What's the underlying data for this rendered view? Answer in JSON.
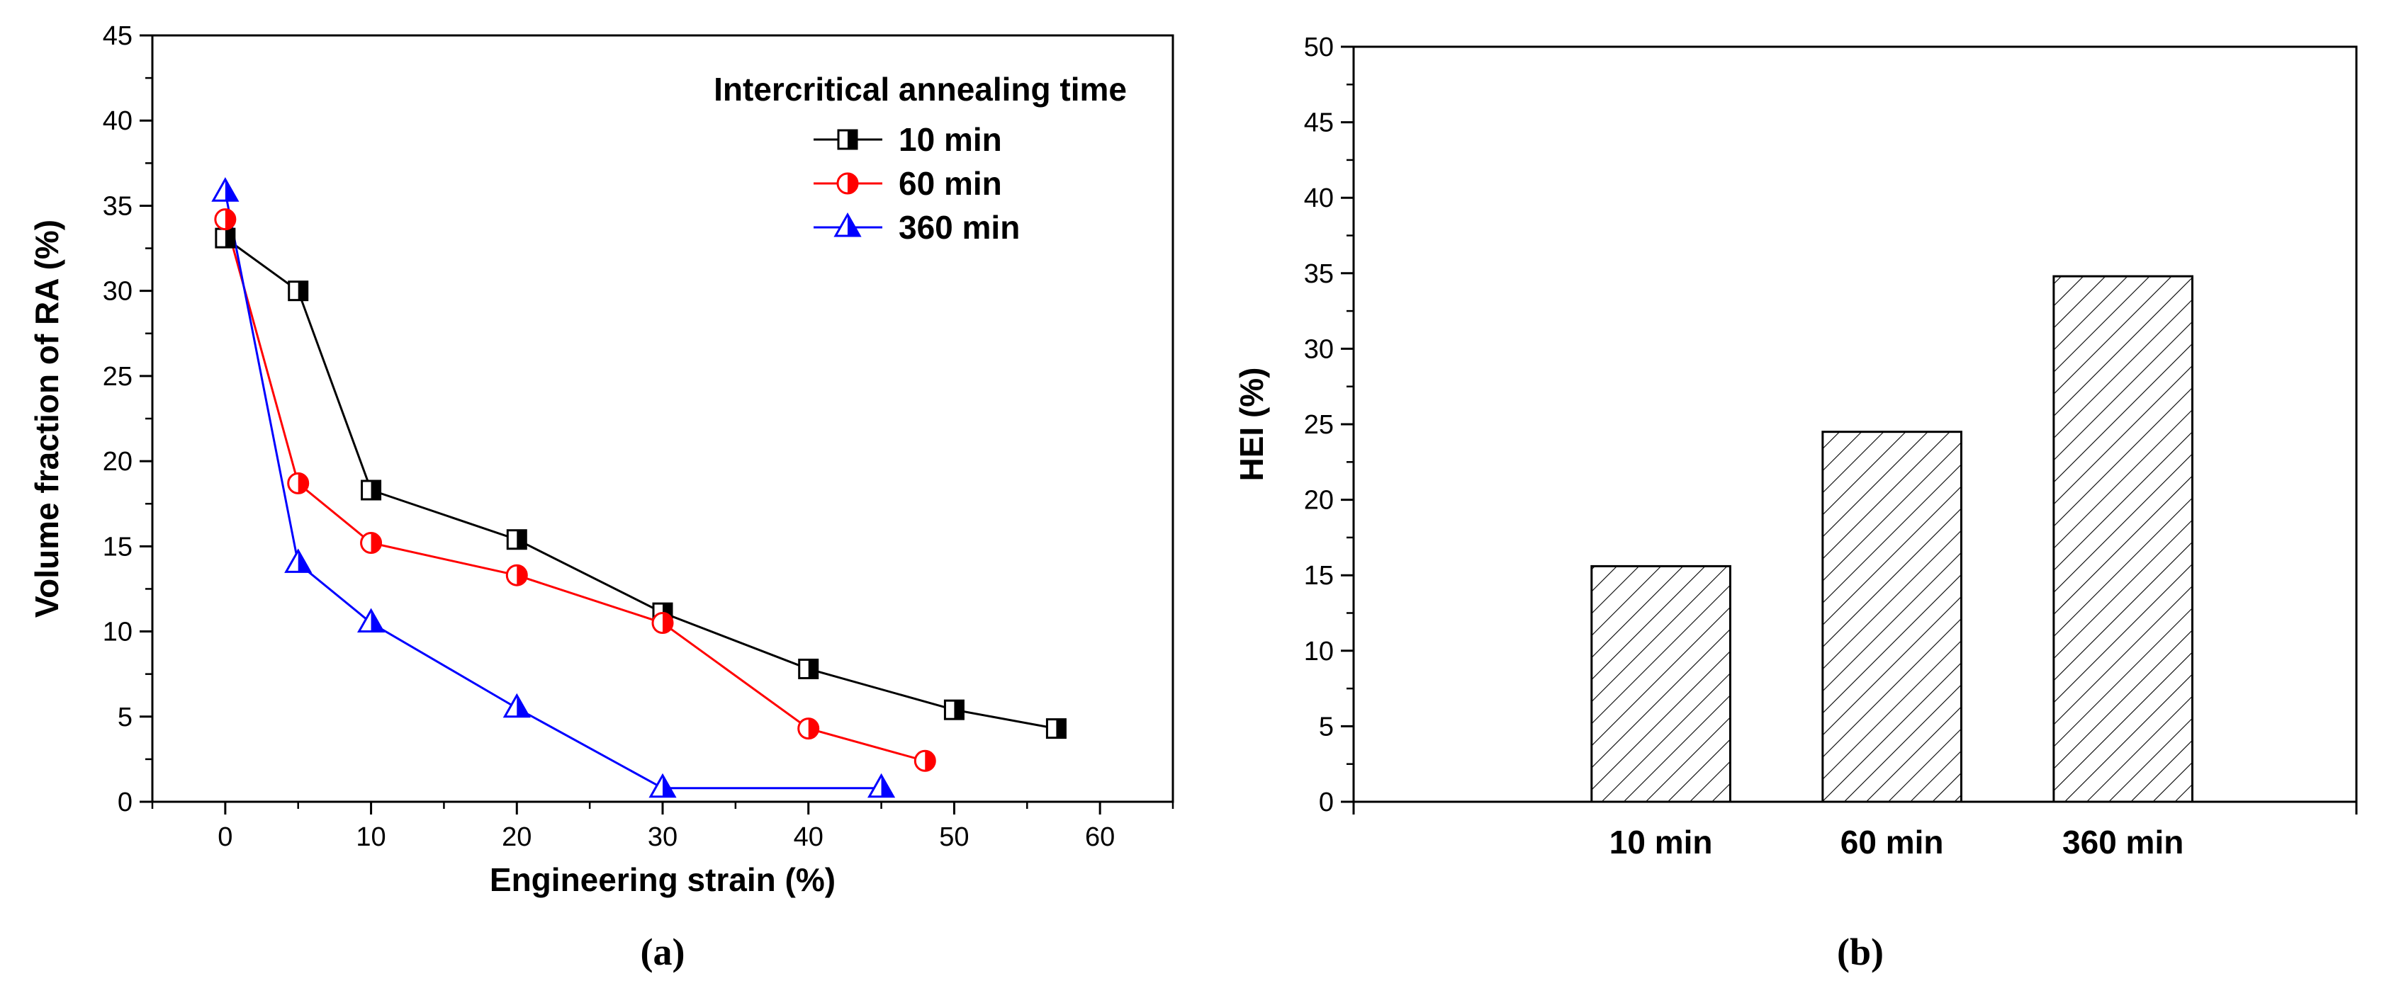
{
  "chart_data": [
    {
      "type": "line",
      "panel_label": "(a)",
      "xlabel": "Engineering strain (%)",
      "ylabel": "Volume fraction of RA (%)",
      "xlim": [
        -5,
        65
      ],
      "ylim": [
        0,
        45
      ],
      "x_ticks": [
        0,
        10,
        20,
        30,
        40,
        50,
        60
      ],
      "y_ticks": [
        0,
        5,
        10,
        15,
        20,
        25,
        30,
        35,
        40,
        45
      ],
      "grid": false,
      "legend": {
        "title": "Intercritical annealing time",
        "placement": "top-right"
      },
      "series": [
        {
          "name": "10 min",
          "color": "#000000",
          "marker": "half-filled-square",
          "x": [
            0,
            5,
            10,
            20,
            30,
            40,
            50,
            57
          ],
          "y": [
            33.1,
            30.0,
            18.3,
            15.4,
            11.1,
            7.8,
            5.4,
            4.3
          ]
        },
        {
          "name": "60 min",
          "color": "#ff0000",
          "marker": "half-filled-circle",
          "x": [
            0,
            5,
            10,
            20,
            30,
            40,
            48
          ],
          "y": [
            34.2,
            18.7,
            15.2,
            13.3,
            10.5,
            4.3,
            2.4
          ]
        },
        {
          "name": "360 min",
          "color": "#0000ff",
          "marker": "half-filled-triangle",
          "x": [
            0,
            5,
            10,
            20,
            30,
            45
          ],
          "y": [
            35.8,
            14.0,
            10.5,
            5.5,
            0.8,
            0.8
          ]
        }
      ]
    },
    {
      "type": "bar",
      "panel_label": "(b)",
      "xlabel": "",
      "ylabel": "HEI (%)",
      "ylim": [
        0,
        50
      ],
      "y_ticks": [
        0,
        5,
        10,
        15,
        20,
        25,
        30,
        35,
        40,
        45,
        50
      ],
      "grid": false,
      "bar_fill": "diagonal-hatch",
      "categories": [
        "10 min",
        "60 min",
        "360 min"
      ],
      "values": [
        15.6,
        24.5,
        34.8
      ]
    }
  ]
}
